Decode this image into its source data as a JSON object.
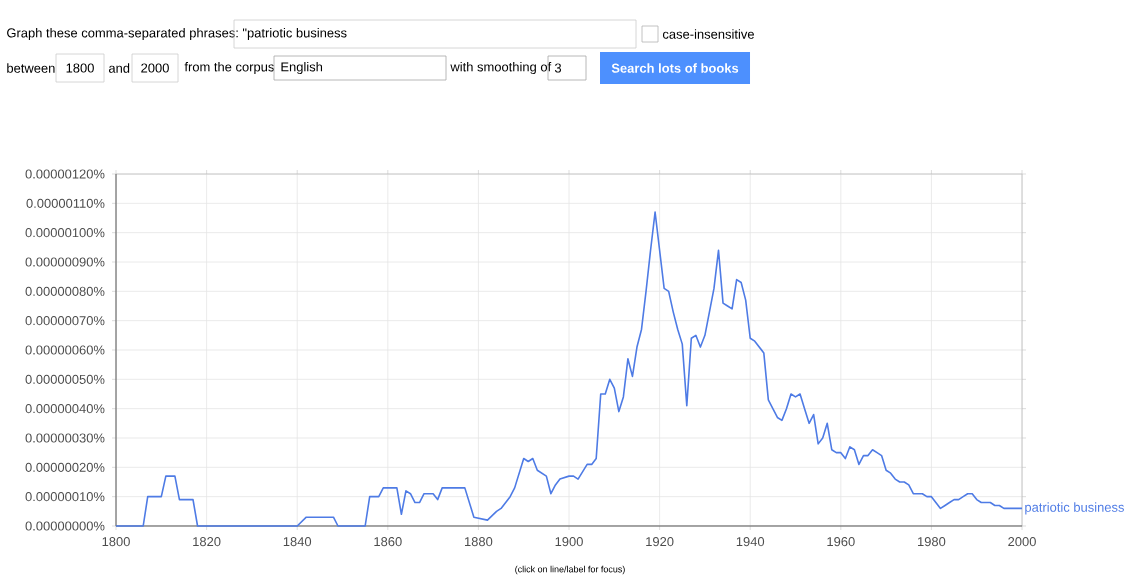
{
  "chart_data": {
    "type": "line",
    "annotations": [
      "Graph these comma-separated phrases:",
      "\"patriotic business",
      "case-insensitive",
      "between",
      "1800",
      "and",
      "2000",
      "from the corpus",
      "English",
      "with smoothing of",
      "3",
      "Search lots of books",
      "(click on line/label for focus)"
    ],
    "xlim": [
      1800,
      2000
    ],
    "xticks": [
      1800,
      1820,
      1840,
      1860,
      1880,
      1900,
      1920,
      1940,
      1960,
      1980,
      2000
    ],
    "ylim": [
      0,
      1.2e-06
    ],
    "yticks": [
      {
        "value": 0,
        "label": "0.00000000%"
      },
      {
        "value": 1e-07,
        "label": "0.00000010%"
      },
      {
        "value": 2e-07,
        "label": "0.00000020%"
      },
      {
        "value": 3e-07,
        "label": "0.00000030%"
      },
      {
        "value": 4e-07,
        "label": "0.00000040%"
      },
      {
        "value": 5e-07,
        "label": "0.00000050%"
      },
      {
        "value": 6e-07,
        "label": "0.00000060%"
      },
      {
        "value": 7e-07,
        "label": "0.00000070%"
      },
      {
        "value": 8e-07,
        "label": "0.00000080%"
      },
      {
        "value": 9e-07,
        "label": "0.00000090%"
      },
      {
        "value": 1e-06,
        "label": "0.00000100%"
      },
      {
        "value": 1.1e-06,
        "label": "0.00000110%"
      },
      {
        "value": 1.2e-06,
        "label": "0.00000120%"
      }
    ],
    "grid": true,
    "marker": "none",
    "line_style": "solid",
    "series": [
      {
        "name": "patriotic business",
        "color": "#4e7be5",
        "x": [
          1800,
          1806,
          1807,
          1810,
          1811,
          1813,
          1814,
          1817,
          1818,
          1840,
          1842,
          1848,
          1849,
          1855,
          1856,
          1858,
          1859,
          1862,
          1863,
          1864,
          1865,
          1866,
          1867,
          1868,
          1870,
          1871,
          1872,
          1874,
          1875,
          1877,
          1879,
          1882,
          1884,
          1885,
          1887,
          1888,
          1890,
          1891,
          1892,
          1893,
          1895,
          1896,
          1897,
          1898,
          1900,
          1901,
          1902,
          1904,
          1905,
          1906,
          1907,
          1908,
          1909,
          1910,
          1911,
          1912,
          1913,
          1914,
          1915,
          1916,
          1917,
          1918,
          1919,
          1920,
          1921,
          1922,
          1923,
          1924,
          1925,
          1926,
          1927,
          1928,
          1929,
          1930,
          1931,
          1932,
          1933,
          1934,
          1935,
          1936,
          1937,
          1938,
          1939,
          1940,
          1941,
          1942,
          1943,
          1944,
          1945,
          1946,
          1947,
          1948,
          1949,
          1950,
          1951,
          1952,
          1953,
          1954,
          1955,
          1956,
          1957,
          1958,
          1959,
          1960,
          1961,
          1962,
          1963,
          1964,
          1965,
          1966,
          1967,
          1968,
          1969,
          1970,
          1971,
          1972,
          1973,
          1974,
          1975,
          1976,
          1977,
          1978,
          1979,
          1980,
          1981,
          1982,
          1983,
          1984,
          1985,
          1986,
          1987,
          1988,
          1989,
          1990,
          1991,
          1992,
          1993,
          1994,
          1995,
          1996,
          1997,
          1998,
          2000
        ],
        "values": [
          0,
          0,
          1e-07,
          1e-07,
          1.7e-07,
          1.7e-07,
          9e-08,
          9e-08,
          0,
          0,
          3e-08,
          3e-08,
          0,
          0,
          1e-07,
          1e-07,
          1.3e-07,
          1.3e-07,
          4e-08,
          1.2e-07,
          1.1e-07,
          8e-08,
          8e-08,
          1.1e-07,
          1.1e-07,
          9e-08,
          1.3e-07,
          1.3e-07,
          1.3e-07,
          1.3e-07,
          3e-08,
          2e-08,
          5e-08,
          6e-08,
          1e-07,
          1.3e-07,
          2.3e-07,
          2.2e-07,
          2.3e-07,
          1.9e-07,
          1.7e-07,
          1.1e-07,
          1.4e-07,
          1.6e-07,
          1.7e-07,
          1.7e-07,
          1.6e-07,
          2.1e-07,
          2.1e-07,
          2.3e-07,
          4.5e-07,
          4.5e-07,
          5e-07,
          4.7e-07,
          3.9e-07,
          4.4e-07,
          5.7e-07,
          5.1e-07,
          6.1e-07,
          6.7e-07,
          8e-07,
          9.4e-07,
          1.07e-06,
          9.4e-07,
          8.1e-07,
          8e-07,
          7.3e-07,
          6.7e-07,
          6.2e-07,
          4.1e-07,
          6.4e-07,
          6.5e-07,
          6.1e-07,
          6.5e-07,
          7.3e-07,
          8.1e-07,
          9.4e-07,
          7.6e-07,
          7.5e-07,
          7.4e-07,
          8.4e-07,
          8.3e-07,
          7.7e-07,
          6.4e-07,
          6.3e-07,
          6.1e-07,
          5.9e-07,
          4.3e-07,
          4e-07,
          3.7e-07,
          3.6e-07,
          4e-07,
          4.5e-07,
          4.4e-07,
          4.5e-07,
          4e-07,
          3.5e-07,
          3.8e-07,
          2.8e-07,
          3e-07,
          3.5e-07,
          2.6e-07,
          2.5e-07,
          2.5e-07,
          2.3e-07,
          2.7e-07,
          2.6e-07,
          2.1e-07,
          2.4e-07,
          2.4e-07,
          2.6e-07,
          2.5e-07,
          2.4e-07,
          1.9e-07,
          1.8e-07,
          1.6e-07,
          1.5e-07,
          1.5e-07,
          1.4e-07,
          1.1e-07,
          1.1e-07,
          1.1e-07,
          1e-07,
          1e-07,
          8e-08,
          6e-08,
          7e-08,
          8e-08,
          9e-08,
          9e-08,
          1e-07,
          1.1e-07,
          1.1e-07,
          9e-08,
          8e-08,
          8e-08,
          8e-08,
          7e-08,
          7e-08,
          6e-08,
          6e-08,
          6e-08,
          6e-08
        ]
      }
    ]
  }
}
